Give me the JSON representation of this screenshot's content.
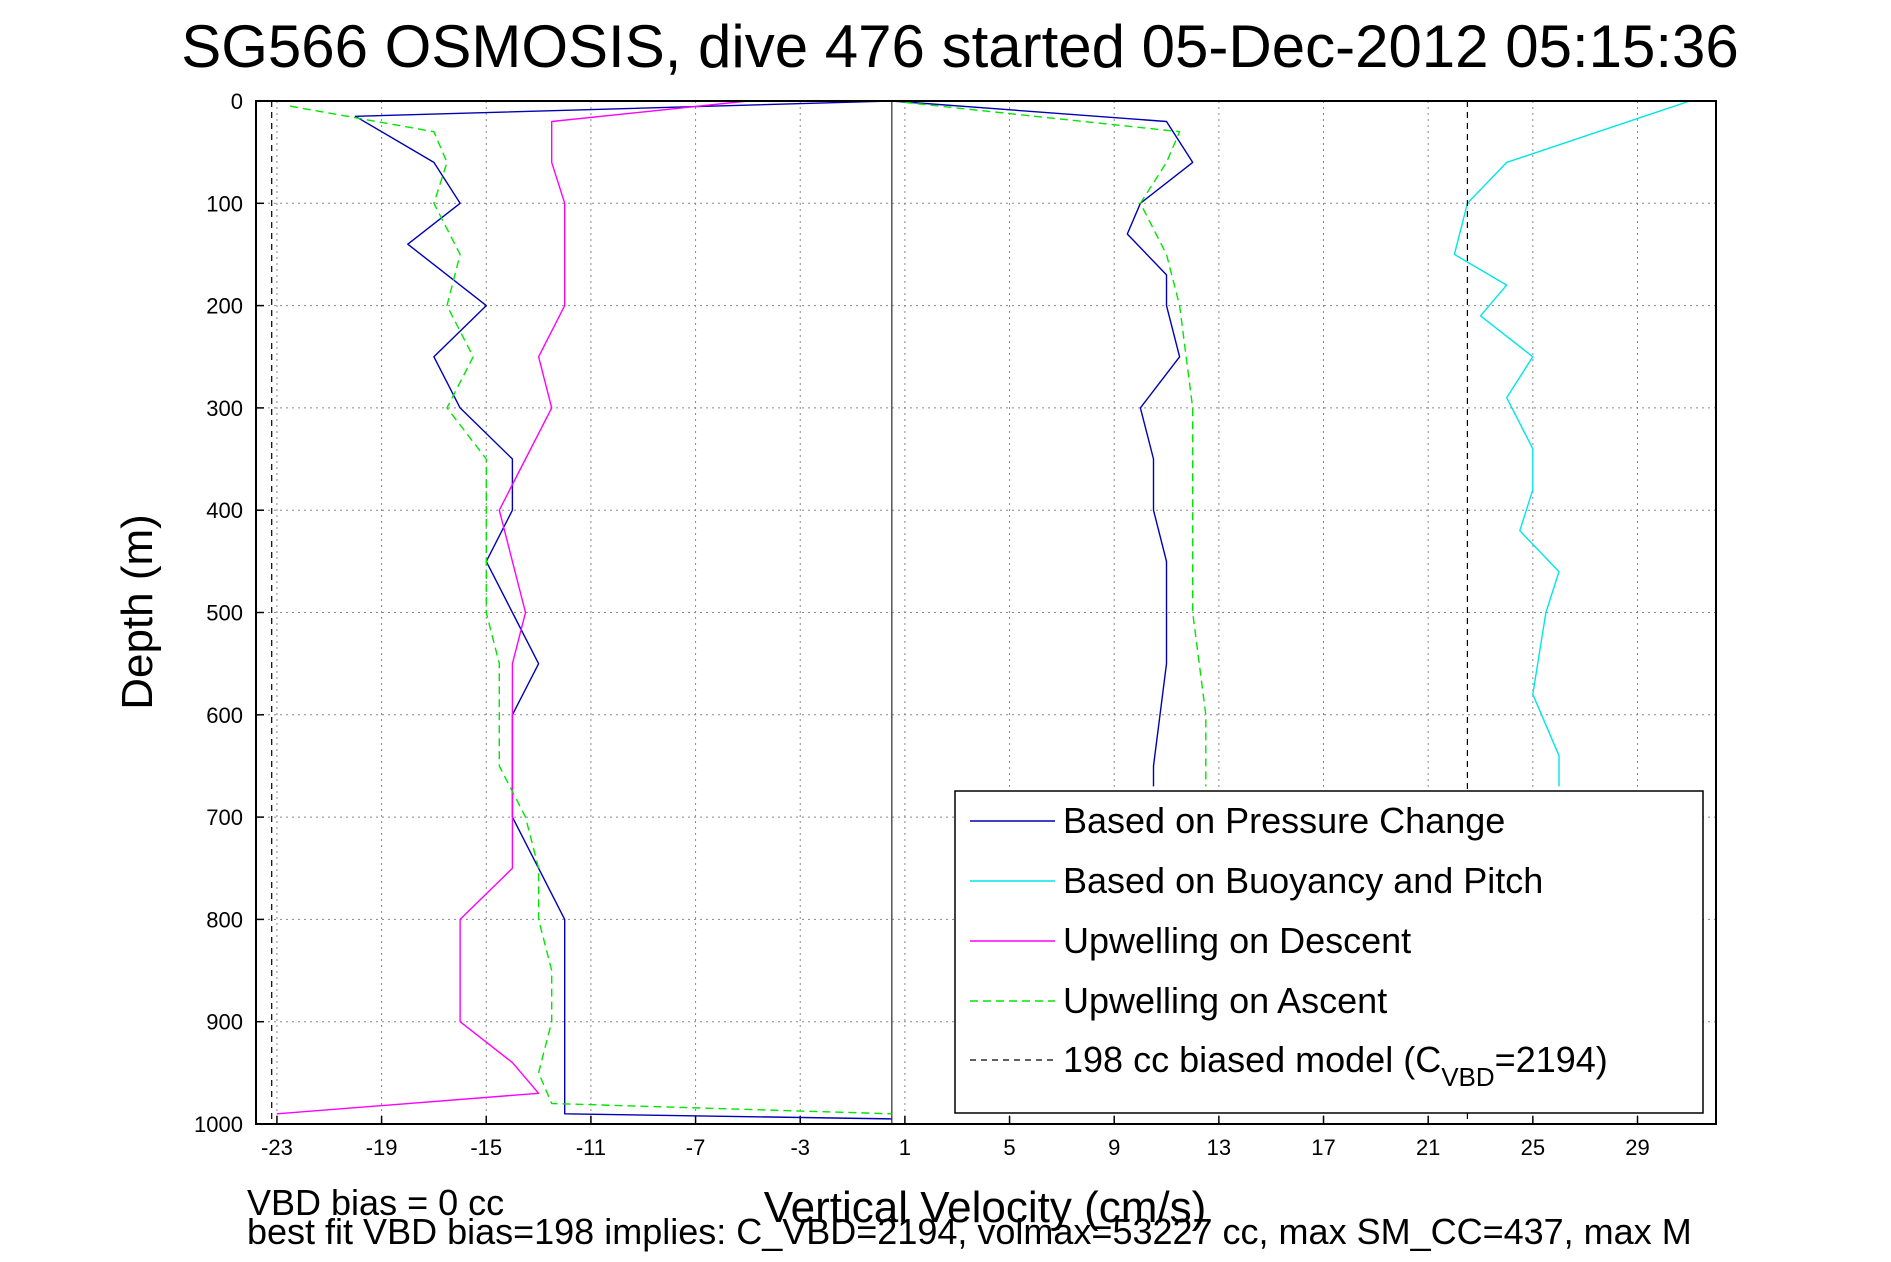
{
  "chart_data": {
    "type": "line",
    "title": "SG566 OSMOSIS, dive 476 started 05-Dec-2012 05:15:36",
    "xlabel": "Vertical Velocity (cm/s)",
    "ylabel": "Depth (m)",
    "xlim": [
      -23.8,
      32
    ],
    "ylim": [
      1000,
      0
    ],
    "x_ticks": [
      "-23",
      "-19",
      "-15",
      "-11",
      "-7",
      "-3",
      "1",
      "5",
      "9",
      "13",
      "17",
      "21",
      "25",
      "29"
    ],
    "y_ticks": [
      "0",
      "100",
      "200",
      "300",
      "400",
      "500",
      "600",
      "700",
      "800",
      "900",
      "1000"
    ],
    "grid": true,
    "legend_position": "bottom-right",
    "colors": {
      "pressure": "#0000b4",
      "buoyancy": "#00e6e6",
      "descent": "#ff00ff",
      "ascent": "#00e600",
      "model": "#000000"
    },
    "series": [
      {
        "name": "Based on Pressure Change",
        "style": "solid",
        "segments": [
          {
            "x": [
              0.5,
              -20,
              -17,
              -16,
              -18,
              -15,
              -17,
              -16,
              -14,
              -14,
              -15,
              -14,
              -13,
              -14,
              -14,
              -14,
              -13,
              -12,
              -12,
              -12,
              -12,
              -12,
              0.5
            ],
            "depth": [
              0,
              15,
              60,
              100,
              140,
              200,
              250,
              300,
              350,
              400,
              450,
              500,
              550,
              600,
              650,
              700,
              750,
              800,
              850,
              900,
              950,
              990,
              995
            ]
          },
          {
            "x": [
              0.5,
              11,
              12,
              10,
              9.5,
              11,
              11,
              11.5,
              10,
              10.5,
              10.5,
              11,
              11,
              10.5,
              10.5
            ],
            "depth": [
              0,
              20,
              60,
              100,
              130,
              170,
              200,
              250,
              300,
              350,
              400,
              450,
              550,
              650,
              670
            ]
          }
        ]
      },
      {
        "name": "Based on Buoyancy and Pitch",
        "style": "solid",
        "segments": [
          {
            "x": [
              31,
              24,
              22.5,
              22,
              24,
              23,
              25,
              24,
              25,
              25,
              24.5,
              26,
              25.5,
              25,
              26,
              26
            ],
            "depth": [
              0,
              60,
              100,
              150,
              180,
              210,
              250,
              290,
              340,
              380,
              420,
              460,
              500,
              580,
              640,
              670
            ]
          }
        ]
      },
      {
        "name": "Upwelling on Descent",
        "style": "solid",
        "segments": [
          {
            "x": [
              -5,
              -12.5,
              -12.5,
              -12,
              -12,
              -12,
              -13,
              -12.5,
              -13.5,
              -14.5,
              -14,
              -13.5,
              -14,
              -14,
              -14,
              -14,
              -14,
              -16,
              -16,
              -14,
              -13,
              -23
            ],
            "depth": [
              0,
              20,
              60,
              100,
              150,
              200,
              250,
              300,
              350,
              400,
              450,
              500,
              550,
              600,
              650,
              700,
              750,
              800,
              900,
              940,
              970,
              990
            ]
          }
        ]
      },
      {
        "name": "Upwelling on Ascent",
        "style": "dashed",
        "segments": [
          {
            "x": [
              -22.5,
              -17,
              -16.5,
              -17,
              -16,
              -16.5,
              -15.5,
              -16.5,
              -15,
              -15,
              -15,
              -15,
              -14.5,
              -14.5,
              -14.5,
              -13.5,
              -13,
              -13,
              -12.5,
              -12.5,
              -13,
              -12.5,
              0.5
            ],
            "depth": [
              5,
              30,
              60,
              100,
              150,
              200,
              250,
              300,
              350,
              400,
              450,
              500,
              550,
              600,
              650,
              700,
              750,
              800,
              850,
              900,
              950,
              980,
              990
            ]
          },
          {
            "x": [
              0.5,
              11.5,
              11,
              10,
              11,
              11.5,
              12,
              12,
              12,
              12.5,
              12.5
            ],
            "depth": [
              0,
              30,
              60,
              100,
              150,
              200,
              300,
              400,
              500,
              600,
              670
            ]
          }
        ]
      },
      {
        "name": "198 cc biased model (C",
        "name_subscript": "VBD",
        "name_suffix": "=2194)",
        "style": "dashed",
        "segments": [
          {
            "x": [
              -23.2,
              -23.2
            ],
            "depth": [
              0,
              1000
            ]
          },
          {
            "x": [
              22.5,
              22.5
            ],
            "depth": [
              0,
              1000
            ]
          }
        ]
      }
    ],
    "reference_lines": [
      {
        "x": [
          0.5,
          0.5
        ],
        "depth": [
          0,
          1000
        ],
        "style": "solid"
      }
    ]
  },
  "footer": {
    "line1": "VBD bias = 0 cc",
    "line2": "best fit VBD bias=198 implies: C_VBD=2194, volmax=53227 cc, max SM_CC=437, max M"
  }
}
